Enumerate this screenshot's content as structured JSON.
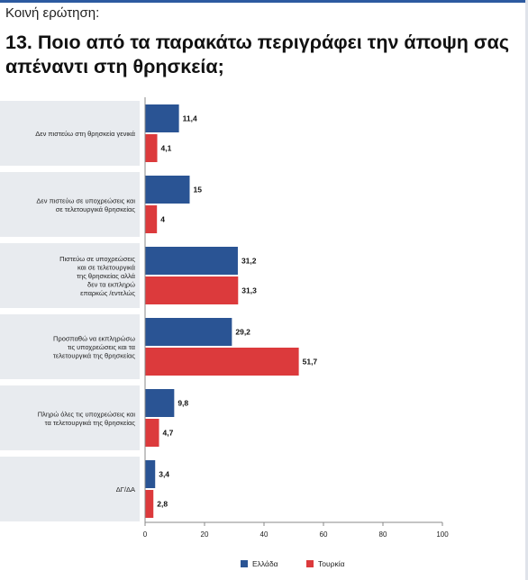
{
  "header": {
    "kicker": "Κοινή ερώτηση:",
    "title": "13. Ποιο από τα παρακάτω περιγράφει την άποψη σας απέναντι στη θρησκεία;"
  },
  "colors": {
    "greece": "#2a5494",
    "turkey": "#dc3a3c",
    "category_bg": "#e8ebef",
    "axis": "#888888"
  },
  "chart_data": {
    "type": "bar",
    "orientation": "horizontal",
    "title": "",
    "xlabel": "",
    "ylabel": "",
    "xlim": [
      0,
      100
    ],
    "ticks": [
      0,
      20,
      40,
      60,
      80,
      100
    ],
    "grid": false,
    "legend_position": "bottom",
    "categories": [
      [
        "Δεν πιστεύω στη θρησκεία γενικά"
      ],
      [
        "Δεν πιστεύω σε υποχρεώσεις και",
        "σε τελετουργικά θρησκείας"
      ],
      [
        "Πιστεύω σε υποχρεώσεις",
        "και σε τελετουργικά",
        "της θρησκείας αλλά",
        "δεν τα εκπληρώ",
        "επαρκώς /εντελώς"
      ],
      [
        "Προσπαθώ να εκπληρώσω",
        "τις υποχρεώσεις και τα",
        "τελετουργικά της θρησκείας"
      ],
      [
        "Πληρώ όλες τις υποχρεώσεις και",
        "τα τελετουργικά της θρησκείας"
      ],
      [
        "ΔΓ/ΔΑ"
      ]
    ],
    "series": [
      {
        "name": "Ελλάδα",
        "values": [
          11.4,
          15,
          31.2,
          29.2,
          9.8,
          3.4
        ],
        "labels": [
          "11,4",
          "15",
          "31,2",
          "29,2",
          "9,8",
          "3,4"
        ]
      },
      {
        "name": "Τουρκία",
        "values": [
          4.1,
          4,
          31.3,
          51.7,
          4.7,
          2.8
        ],
        "labels": [
          "4,1",
          "4",
          "31,3",
          "51,7",
          "4,7",
          "2,8"
        ]
      }
    ]
  }
}
